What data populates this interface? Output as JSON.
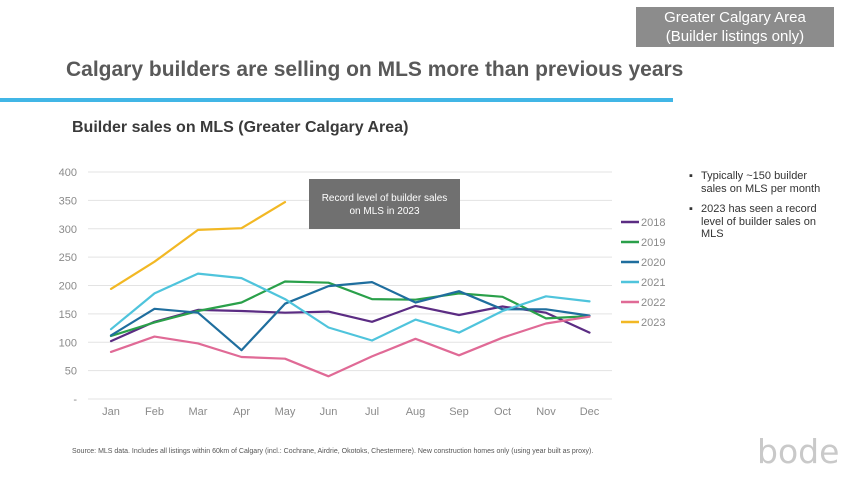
{
  "tag": {
    "line1": "Greater Calgary Area",
    "line2": "(Builder listings only)"
  },
  "headline": "Calgary builders are selling on MLS more than previous years",
  "subheadline": "Builder sales on MLS (Greater Calgary Area)",
  "bullets": [
    "Typically ~150 builder sales on MLS per month",
    "2023 has seen a record level of builder sales on MLS"
  ],
  "source": "Source: MLS data. Includes all listings within 60km of Calgary (incl.: Cochrane, Airdrie, Okotoks, Chestermere). New construction homes only (using year built as proxy).",
  "logo": "bode",
  "chart_data": {
    "type": "line",
    "categories": [
      "Jan",
      "Feb",
      "Mar",
      "Apr",
      "May",
      "Jun",
      "Jul",
      "Aug",
      "Sep",
      "Oct",
      "Nov",
      "Dec"
    ],
    "ylim": [
      0,
      400
    ],
    "yticks": [
      {
        "value": 0,
        "label": "-"
      },
      {
        "value": 50,
        "label": "50"
      },
      {
        "value": 100,
        "label": "100"
      },
      {
        "value": 150,
        "label": "150"
      },
      {
        "value": 200,
        "label": "200"
      },
      {
        "value": 250,
        "label": "250"
      },
      {
        "value": 300,
        "label": "300"
      },
      {
        "value": 350,
        "label": "350"
      },
      {
        "value": 400,
        "label": "400"
      }
    ],
    "grid": true,
    "legend_position": "right",
    "annotation": "Record level of builder sales on MLS in 2023",
    "series": [
      {
        "name": "2018",
        "color": "#5b2c83",
        "values": [
          102,
          136,
          157,
          155,
          152,
          154,
          136,
          164,
          148,
          163,
          152,
          117
        ]
      },
      {
        "name": "2019",
        "color": "#2aa04a",
        "values": [
          111,
          135,
          155,
          170,
          207,
          205,
          176,
          175,
          186,
          180,
          142,
          146
        ]
      },
      {
        "name": "2020",
        "color": "#1f6e9e",
        "values": [
          112,
          159,
          152,
          86,
          168,
          199,
          206,
          170,
          190,
          158,
          158,
          147
        ]
      },
      {
        "name": "2021",
        "color": "#4fc4dc",
        "values": [
          123,
          186,
          221,
          213,
          176,
          126,
          103,
          140,
          117,
          155,
          181,
          172
        ]
      },
      {
        "name": "2022",
        "color": "#e06a96",
        "values": [
          83,
          110,
          98,
          74,
          71,
          40,
          75,
          106,
          77,
          108,
          133,
          145
        ]
      },
      {
        "name": "2023",
        "color": "#f2b824",
        "values": [
          194,
          242,
          298,
          301,
          347,
          null,
          null,
          null,
          null,
          null,
          null,
          null
        ]
      }
    ]
  }
}
